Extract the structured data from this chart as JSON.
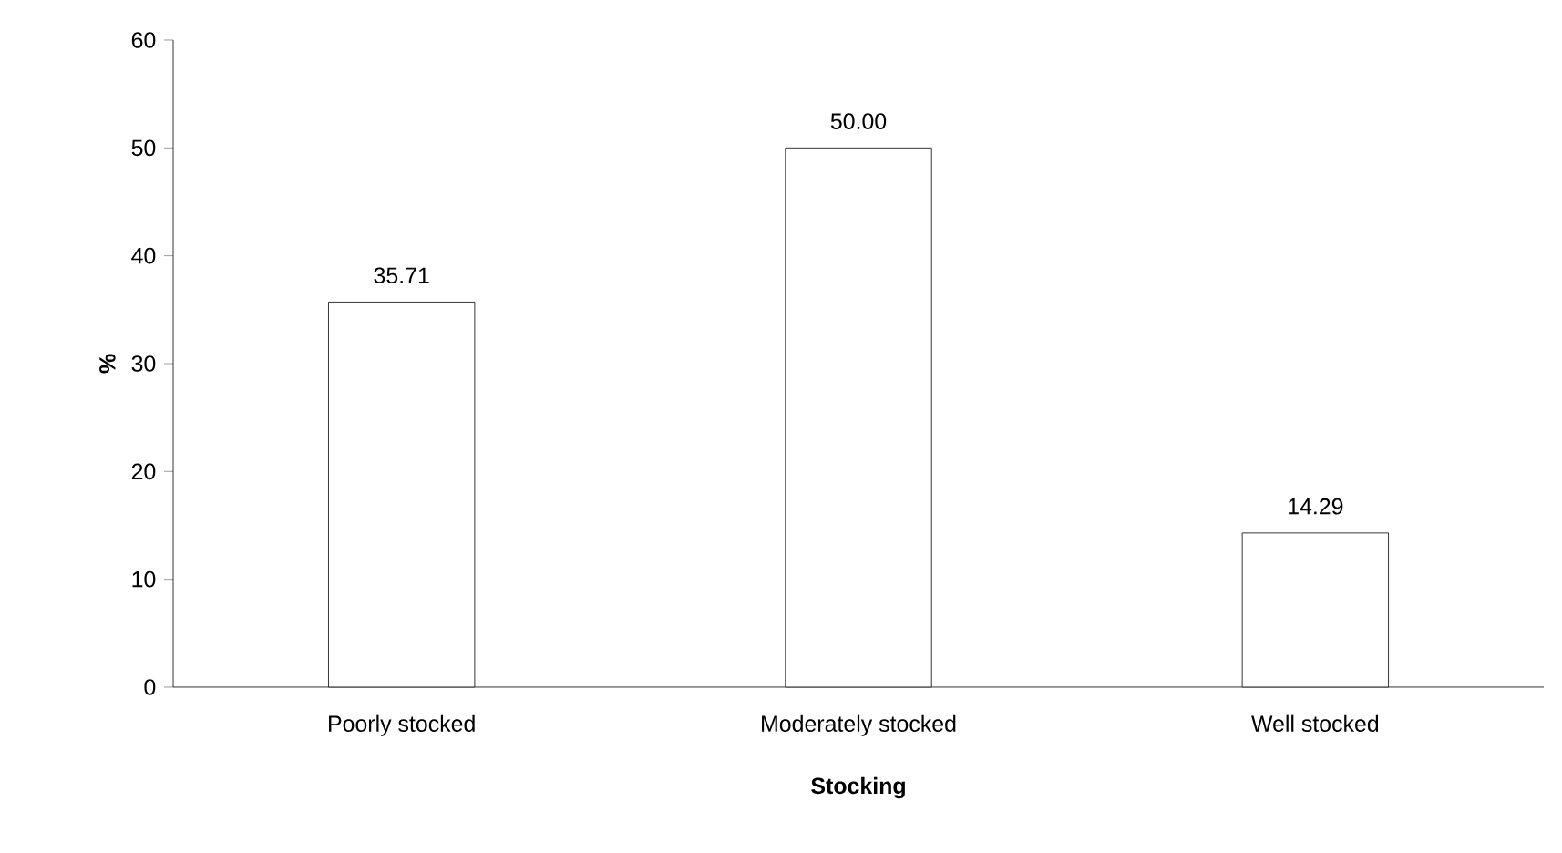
{
  "chart_data": {
    "type": "bar",
    "xlabel": "Stocking",
    "ylabel": "%",
    "categories": [
      "Poorly stocked",
      "Moderately stocked",
      "Well stocked"
    ],
    "values": [
      35.71,
      50.0,
      14.29
    ],
    "value_labels": [
      "35.71",
      "50.00",
      "14.29"
    ],
    "color": "#ffffff",
    "ylim": [
      0,
      60
    ],
    "yticks": [
      0,
      10,
      20,
      30,
      40,
      50,
      60
    ],
    "grid": false
  }
}
